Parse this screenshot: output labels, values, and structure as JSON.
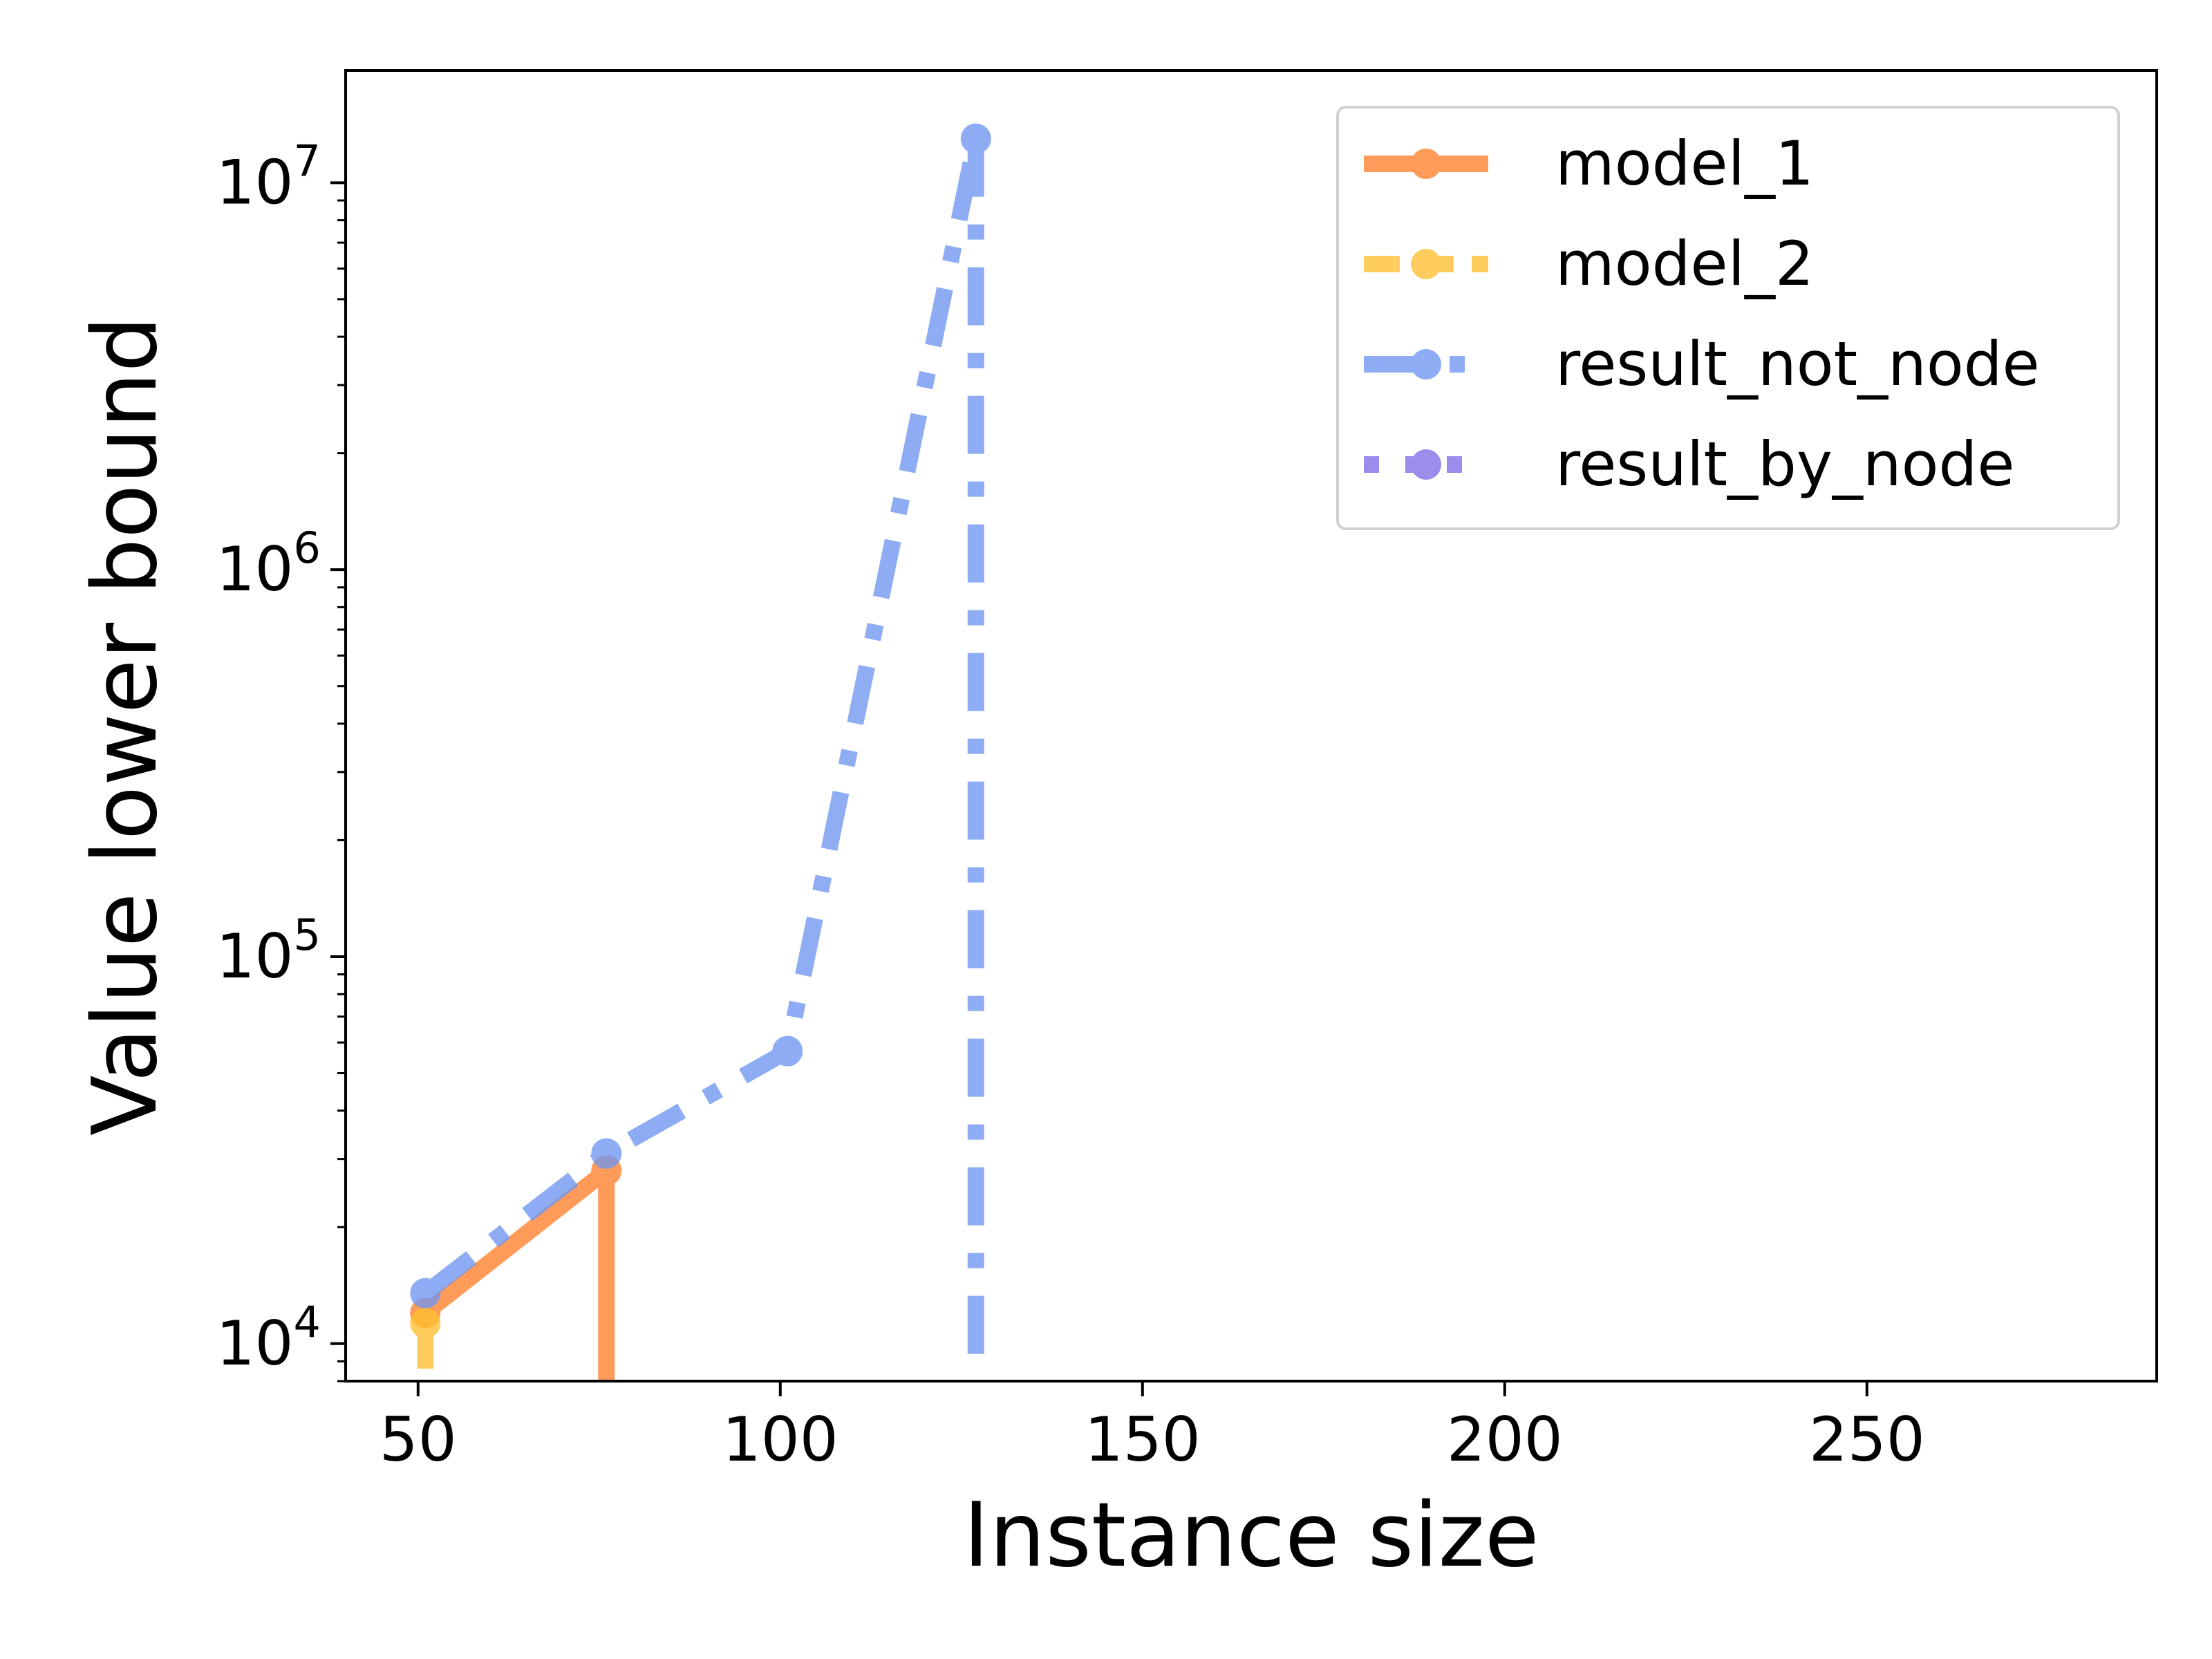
{
  "chart_data": {
    "type": "line",
    "title": "",
    "xlabel": "Instance size",
    "ylabel": "Value lower bound",
    "xlim": [
      40,
      290
    ],
    "ylim": [
      8000,
      19500000
    ],
    "yscale": "log",
    "x_ticks": [
      50,
      100,
      150,
      200,
      250
    ],
    "y_ticks": [
      {
        "value": 10000,
        "label_base": "10",
        "label_exp": "4"
      },
      {
        "value": 100000,
        "label_base": "10",
        "label_exp": "5"
      },
      {
        "value": 1000000,
        "label_base": "10",
        "label_exp": "6"
      },
      {
        "value": 10000000,
        "label_base": "10",
        "label_exp": "7"
      }
    ],
    "grid": false,
    "legend_position": "upper right",
    "series": [
      {
        "name": "model_1",
        "color": "#ff7f2a",
        "style": "solid",
        "points": [
          [
            51,
            12000
          ],
          [
            76,
            28000
          ]
        ],
        "drop_to_floor": [
          76
        ]
      },
      {
        "name": "model_2",
        "color": "#ffbf30",
        "style": "dashed",
        "points": [
          [
            51,
            11300
          ]
        ],
        "drop_to_floor": [
          51
        ]
      },
      {
        "name": "result_not_node",
        "color": "#6f96f0",
        "style": "dashdot",
        "points": [
          [
            51,
            13500
          ],
          [
            76,
            31000
          ],
          [
            101,
            57000
          ],
          [
            127,
            13000000
          ]
        ],
        "drop_to_floor": [
          127
        ]
      },
      {
        "name": "result_by_node",
        "color": "#7e6ee6",
        "style": "dotted",
        "points": [],
        "drop_to_floor": []
      }
    ]
  }
}
